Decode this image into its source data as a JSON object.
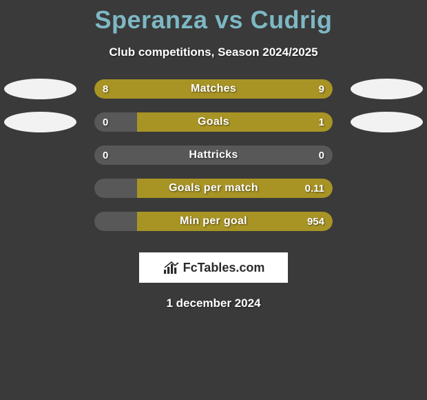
{
  "title": "Speranza vs Cudrig",
  "subtitle": "Club competitions, Season 2024/2025",
  "date": "1 december 2024",
  "logo_text": "FcTables.com",
  "colors": {
    "background": "#3a3a3a",
    "title": "#7db8c4",
    "text": "#ffffff",
    "oval": "#f2f2f2",
    "team_a": "#a89425",
    "team_b": "#a89425",
    "empty_left": "#585858",
    "empty_right": "#585858"
  },
  "stats": [
    {
      "label": "Matches",
      "left_value": "8",
      "right_value": "9",
      "left_pct": 47,
      "right_pct": 53,
      "left_color": "#a89425",
      "right_color": "#a89425",
      "show_ovals": true
    },
    {
      "label": "Goals",
      "left_value": "0",
      "right_value": "1",
      "left_pct": 18,
      "right_pct": 82,
      "left_color": "#585858",
      "right_color": "#a89425",
      "show_ovals": true
    },
    {
      "label": "Hattricks",
      "left_value": "0",
      "right_value": "0",
      "left_pct": 50,
      "right_pct": 50,
      "left_color": "#585858",
      "right_color": "#585858",
      "show_ovals": false
    },
    {
      "label": "Goals per match",
      "left_value": "",
      "right_value": "0.11",
      "left_pct": 18,
      "right_pct": 82,
      "left_color": "#585858",
      "right_color": "#a89425",
      "show_ovals": false
    },
    {
      "label": "Min per goal",
      "left_value": "",
      "right_value": "954",
      "left_pct": 18,
      "right_pct": 82,
      "left_color": "#585858",
      "right_color": "#a89425",
      "show_ovals": false
    }
  ]
}
